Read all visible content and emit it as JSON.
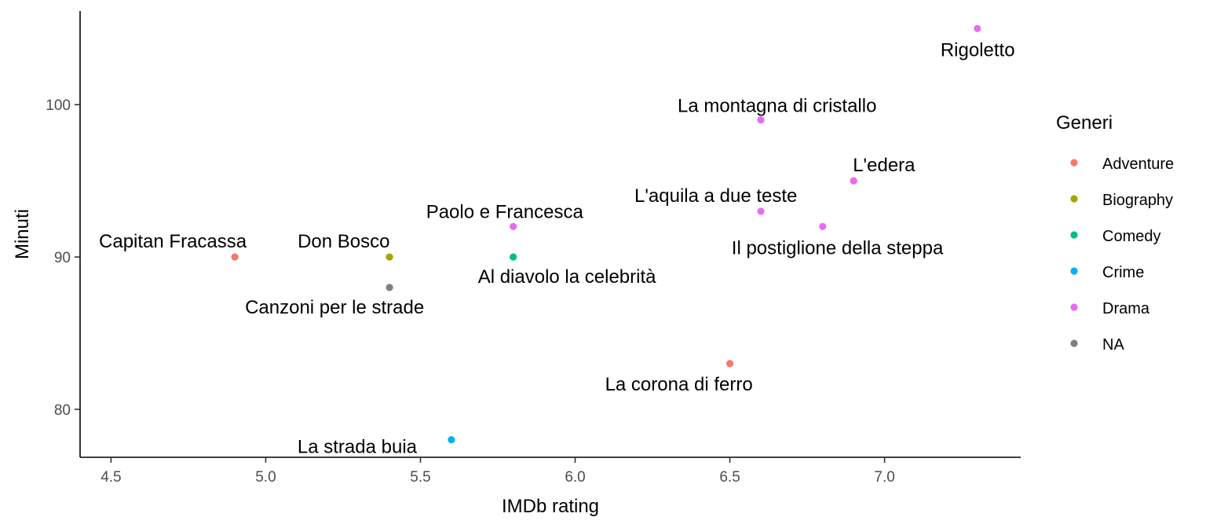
{
  "chart_data": {
    "type": "scatter",
    "xlabel": "IMDb rating",
    "ylabel": "Minuti",
    "xlim": [
      4.4,
      7.44
    ],
    "ylim": [
      76.85,
      106.15
    ],
    "x_ticks": [
      "4.5",
      "5.0",
      "5.5",
      "6.0",
      "6.5",
      "7.0"
    ],
    "x_tick_values": [
      4.5,
      5.0,
      5.5,
      6.0,
      6.5,
      7.0
    ],
    "y_ticks": [
      "80",
      "90",
      "100"
    ],
    "y_tick_values": [
      80,
      90,
      100
    ],
    "grid": false,
    "legend": {
      "title": "Generi",
      "position": "right",
      "entries": [
        {
          "name": "Adventure",
          "color": "#F8766D"
        },
        {
          "name": "Biography",
          "color": "#A3A500"
        },
        {
          "name": "Comedy",
          "color": "#00BF7D"
        },
        {
          "name": "Crime",
          "color": "#00B0F6"
        },
        {
          "name": "Drama",
          "color": "#E76BF3"
        },
        {
          "name": "NA",
          "color": "#7F7F7F"
        }
      ]
    },
    "points": [
      {
        "label": "Rigoletto",
        "x": 7.3,
        "y": 105,
        "genre": "Drama",
        "label_pos": "below"
      },
      {
        "label": "La montagna di cristallo",
        "x": 6.6,
        "y": 99,
        "genre": "Drama",
        "label_pos": "above"
      },
      {
        "label": "L'edera",
        "x": 6.9,
        "y": 95,
        "genre": "Drama",
        "label_pos": "above-right"
      },
      {
        "label": "L'aquila a due teste",
        "x": 6.6,
        "y": 93,
        "genre": "Drama",
        "label_pos": "above-left"
      },
      {
        "label": "Il postiglione della steppa",
        "x": 6.8,
        "y": 92,
        "genre": "Drama",
        "label_pos": "below-right"
      },
      {
        "label": "Paolo e Francesca",
        "x": 5.8,
        "y": 92,
        "genre": "Drama",
        "label_pos": "above"
      },
      {
        "label": "Capitan Fracassa",
        "x": 4.9,
        "y": 90,
        "genre": "Adventure",
        "label_pos": "above-left"
      },
      {
        "label": "Don Bosco",
        "x": 5.4,
        "y": 90,
        "genre": "Biography",
        "label_pos": "above-left"
      },
      {
        "label": "Al diavolo la celebrità",
        "x": 5.8,
        "y": 90,
        "genre": "Comedy",
        "label_pos": "below-right"
      },
      {
        "label": "Canzoni per le strade",
        "x": 5.4,
        "y": 88,
        "genre": "NA",
        "label_pos": "below-left"
      },
      {
        "label": "La corona di ferro",
        "x": 6.5,
        "y": 83,
        "genre": "Adventure",
        "label_pos": "below-left"
      },
      {
        "label": "La strada buia",
        "x": 5.6,
        "y": 78,
        "genre": "Crime",
        "label_pos": "below-left"
      }
    ]
  }
}
